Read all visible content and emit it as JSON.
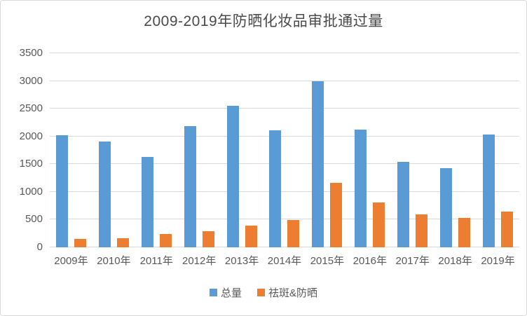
{
  "title": "2009-2019年防晒化妆品审批通过量",
  "colors": {
    "total_series": "#5B9BD5",
    "sunscreen_series": "#ED7D31",
    "gridline": "#D9D9D9",
    "axis_text": "#595959",
    "title_text": "#4A4A4A",
    "frame_border": "#D9D9D9"
  },
  "legend": {
    "items": [
      {
        "label": "总量",
        "color": "#5B9BD5"
      },
      {
        "label": "祛斑&防晒",
        "color": "#ED7D31"
      }
    ]
  },
  "chart_data": {
    "type": "bar",
    "title": "2009-2019年防晒化妆品审批通过量",
    "categories": [
      "2009年",
      "2010年",
      "2011年",
      "2012年",
      "2013年",
      "2014年",
      "2015年",
      "2016年",
      "2017年",
      "2018年",
      "2019年"
    ],
    "series": [
      {
        "name": "总量",
        "color": "#5B9BD5",
        "values": [
          2020,
          1910,
          1630,
          2190,
          2550,
          2110,
          3000,
          2120,
          1540,
          1425,
          2040
        ]
      },
      {
        "name": "祛斑&防晒",
        "color": "#ED7D31",
        "values": [
          155,
          170,
          235,
          285,
          395,
          490,
          1165,
          805,
          590,
          535,
          645
        ]
      }
    ],
    "xlabel": "",
    "ylabel": "",
    "ylim": [
      0,
      3500
    ],
    "yticks": [
      0,
      500,
      1000,
      1500,
      2000,
      2500,
      3000,
      3500
    ],
    "grid": "horizontal",
    "legend_position": "bottom"
  }
}
